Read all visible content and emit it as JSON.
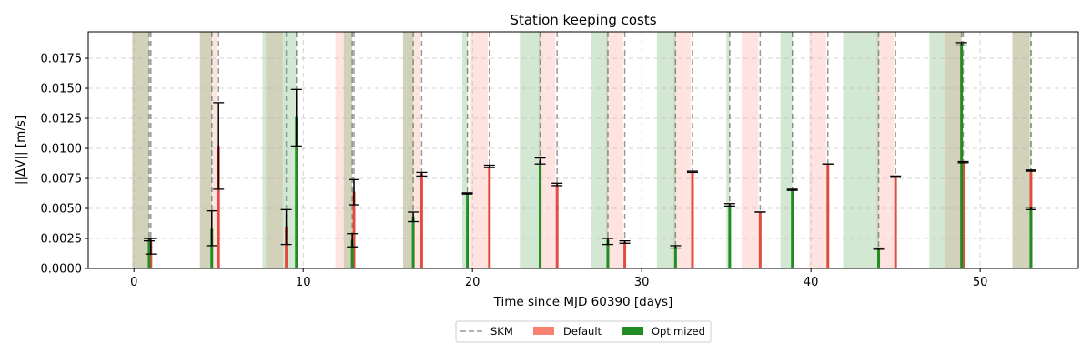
{
  "chart_data": {
    "type": "bar",
    "title": "Station keeping costs",
    "xlabel": "Time since MJD 60390 [days]",
    "ylabel": "||ΔV|| [m/s]",
    "xlim": [
      -2.7,
      55.8
    ],
    "ylim": [
      0,
      0.0197
    ],
    "xticks": [
      0,
      10,
      20,
      30,
      40,
      50
    ],
    "xtick_labels": [
      "0",
      "10",
      "20",
      "30",
      "40",
      "50"
    ],
    "yticks": [
      0.0,
      0.0025,
      0.005,
      0.0075,
      0.01,
      0.0125,
      0.015,
      0.0175
    ],
    "ytick_labels": [
      "0.0000",
      "0.0025",
      "0.0050",
      "0.0075",
      "0.0100",
      "0.0125",
      "0.0150",
      "0.0175"
    ],
    "grid": true,
    "legend": {
      "placement": "below",
      "entries": [
        {
          "label": "SKM",
          "kind": "dashed-line",
          "color": "#999999"
        },
        {
          "label": "Default",
          "kind": "patch",
          "color": "#fa8072"
        },
        {
          "label": "Optimized",
          "kind": "patch",
          "color": "#228b22"
        }
      ]
    },
    "colors": {
      "default": "#fa8072",
      "default_bar": "#e34b3f",
      "optimized": "#228b22",
      "skm": "#999999",
      "error": "#000000"
    },
    "series": [
      {
        "name": "Default",
        "x": [
          1.0,
          5.0,
          9.0,
          13.0,
          17.0,
          21.0,
          25.0,
          29.0,
          33.0,
          37.0,
          41.0,
          45.0,
          49.0,
          53.0
        ],
        "values": [
          0.0023,
          0.0102,
          0.0035,
          0.0064,
          0.0079,
          0.0085,
          0.007,
          0.0022,
          0.008,
          0.0047,
          0.0087,
          0.0077,
          0.0088,
          0.0082
        ],
        "error_low": [
          0.0012,
          0.0066,
          0.002,
          0.0053,
          0.0077,
          0.0084,
          0.0069,
          0.0021,
          0.008,
          0.0047,
          0.0087,
          0.0076,
          0.0088,
          0.0081
        ],
        "error_high": [
          0.0025,
          0.0138,
          0.0049,
          0.0074,
          0.008,
          0.0086,
          0.0071,
          0.0023,
          0.0081,
          0.0047,
          0.0087,
          0.0077,
          0.0089,
          0.0082
        ],
        "windows": [
          [
            -0.1,
            0.9
          ],
          [
            3.9,
            4.9
          ],
          [
            7.8,
            8.8
          ],
          [
            11.9,
            12.9
          ],
          [
            15.9,
            16.9
          ],
          [
            19.9,
            20.9
          ],
          [
            23.9,
            24.9
          ],
          [
            27.9,
            28.9
          ],
          [
            31.9,
            32.9
          ],
          [
            35.9,
            36.9
          ],
          [
            39.9,
            40.9
          ],
          [
            43.9,
            44.9
          ],
          [
            47.9,
            48.9
          ],
          [
            51.9,
            52.9
          ]
        ]
      },
      {
        "name": "Optimized",
        "x": [
          0.9,
          4.6,
          9.6,
          12.9,
          16.5,
          19.7,
          24.0,
          28.0,
          32.0,
          35.2,
          38.9,
          44.0,
          48.9,
          53.0
        ],
        "values": [
          0.0024,
          0.0033,
          0.0126,
          0.0024,
          0.0043,
          0.0062,
          0.009,
          0.0024,
          0.0018,
          0.0053,
          0.0065,
          0.0017,
          0.0187,
          0.005
        ],
        "error_low": [
          0.0023,
          0.0019,
          0.0102,
          0.0018,
          0.0039,
          0.0062,
          0.0087,
          0.002,
          0.0017,
          0.0052,
          0.0065,
          0.0016,
          0.0186,
          0.0049
        ],
        "error_high": [
          0.0025,
          0.0048,
          0.0149,
          0.0029,
          0.0047,
          0.0063,
          0.0092,
          0.0025,
          0.0019,
          0.0054,
          0.0066,
          0.0017,
          0.0188,
          0.0051
        ],
        "windows": [
          [
            -0.1,
            0.9
          ],
          [
            3.9,
            4.6
          ],
          [
            7.6,
            9.6
          ],
          [
            12.4,
            12.9
          ],
          [
            15.9,
            16.5
          ],
          [
            19.4,
            19.7
          ],
          [
            22.8,
            24.0
          ],
          [
            27.0,
            28.0
          ],
          [
            30.9,
            32.0
          ],
          [
            35.0,
            35.2
          ],
          [
            38.2,
            38.9
          ],
          [
            41.9,
            44.0
          ],
          [
            47.0,
            48.9
          ],
          [
            51.9,
            53.0
          ]
        ]
      }
    ]
  }
}
